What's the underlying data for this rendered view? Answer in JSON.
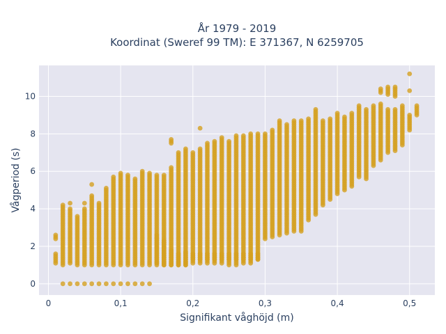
{
  "chart_data": {
    "type": "scatter",
    "title": [
      "År 1979 - 2019",
      "Koordinat (Sweref 99 TM): E 371367, N 6259705"
    ],
    "xlabel": "Signifikant våghöjd (m)",
    "ylabel": "Vågperiod (s)",
    "xlim": [
      -0.013,
      0.535
    ],
    "ylim": [
      -0.6,
      11.65
    ],
    "x_ticks": [
      0,
      0.1,
      0.2,
      0.3,
      0.4,
      0.5
    ],
    "x_tick_labels": [
      "0",
      "0,1",
      "0,2",
      "0,3",
      "0,4",
      "0,5"
    ],
    "y_ticks": [
      0,
      2,
      4,
      6,
      8,
      10
    ],
    "y_tick_labels": [
      "0",
      "2",
      "4",
      "6",
      "8",
      "10"
    ],
    "grid": true,
    "plot_background": "#e5e5f0",
    "marker_color": "#d4a020",
    "marker_opacity": 0.8,
    "legend": "none",
    "x_step": 0.01,
    "series": [
      {
        "columns": [
          {
            "x": 0.01,
            "ranges": [
              [
                1.1,
                1.6
              ],
              [
                2.4,
                2.6
              ]
            ]
          },
          {
            "x": 0.02,
            "ranges": [
              [
                1.0,
                4.2
              ]
            ],
            "points": [
              0
            ]
          },
          {
            "x": 0.03,
            "ranges": [
              [
                1.1,
                4.0
              ]
            ],
            "points": [
              0,
              4.3
            ]
          },
          {
            "x": 0.04,
            "ranges": [
              [
                1.0,
                3.6
              ]
            ],
            "points": [
              0
            ]
          },
          {
            "x": 0.05,
            "ranges": [
              [
                1.0,
                4.0
              ]
            ],
            "points": [
              0,
              4.3
            ]
          },
          {
            "x": 0.06,
            "ranges": [
              [
                1.0,
                4.7
              ]
            ],
            "points": [
              0,
              5.3
            ]
          },
          {
            "x": 0.07,
            "ranges": [
              [
                1.0,
                4.3
              ]
            ],
            "points": [
              0
            ]
          },
          {
            "x": 0.08,
            "ranges": [
              [
                1.0,
                5.1
              ]
            ],
            "points": [
              0
            ]
          },
          {
            "x": 0.09,
            "ranges": [
              [
                1.0,
                5.7
              ]
            ],
            "points": [
              0
            ]
          },
          {
            "x": 0.1,
            "ranges": [
              [
                1.0,
                5.9
              ]
            ],
            "points": [
              0
            ]
          },
          {
            "x": 0.11,
            "ranges": [
              [
                1.0,
                5.8
              ]
            ],
            "points": [
              0
            ]
          },
          {
            "x": 0.12,
            "ranges": [
              [
                1.0,
                5.6
              ]
            ],
            "points": [
              0
            ]
          },
          {
            "x": 0.13,
            "ranges": [
              [
                1.0,
                6.0
              ]
            ],
            "points": [
              0
            ]
          },
          {
            "x": 0.14,
            "ranges": [
              [
                1.0,
                5.9
              ]
            ],
            "points": [
              0
            ]
          },
          {
            "x": 0.15,
            "ranges": [
              [
                1.1,
                5.8
              ]
            ]
          },
          {
            "x": 0.16,
            "ranges": [
              [
                1.0,
                5.8
              ]
            ]
          },
          {
            "x": 0.17,
            "ranges": [
              [
                1.0,
                6.2
              ],
              [
                7.5,
                7.7
              ]
            ]
          },
          {
            "x": 0.18,
            "ranges": [
              [
                1.0,
                7.0
              ]
            ]
          },
          {
            "x": 0.19,
            "ranges": [
              [
                1.0,
                7.2
              ]
            ]
          },
          {
            "x": 0.2,
            "ranges": [
              [
                1.1,
                7.0
              ]
            ]
          },
          {
            "x": 0.21,
            "ranges": [
              [
                1.1,
                7.2
              ]
            ],
            "points": [
              8.3
            ]
          },
          {
            "x": 0.22,
            "ranges": [
              [
                1.1,
                7.5
              ]
            ]
          },
          {
            "x": 0.23,
            "ranges": [
              [
                1.1,
                7.6
              ]
            ]
          },
          {
            "x": 0.24,
            "ranges": [
              [
                1.1,
                7.8
              ]
            ]
          },
          {
            "x": 0.25,
            "ranges": [
              [
                1.0,
                7.6
              ]
            ]
          },
          {
            "x": 0.26,
            "ranges": [
              [
                1.0,
                7.9
              ]
            ]
          },
          {
            "x": 0.27,
            "ranges": [
              [
                1.1,
                7.9
              ]
            ]
          },
          {
            "x": 0.28,
            "ranges": [
              [
                1.1,
                8.0
              ]
            ]
          },
          {
            "x": 0.29,
            "ranges": [
              [
                1.3,
                8.0
              ]
            ]
          },
          {
            "x": 0.3,
            "ranges": [
              [
                2.4,
                8.0
              ]
            ]
          },
          {
            "x": 0.31,
            "ranges": [
              [
                2.5,
                8.2
              ]
            ]
          },
          {
            "x": 0.32,
            "ranges": [
              [
                2.6,
                8.7
              ]
            ]
          },
          {
            "x": 0.33,
            "ranges": [
              [
                2.7,
                8.5
              ]
            ]
          },
          {
            "x": 0.34,
            "ranges": [
              [
                2.8,
                8.7
              ]
            ]
          },
          {
            "x": 0.35,
            "ranges": [
              [
                2.8,
                8.7
              ]
            ]
          },
          {
            "x": 0.36,
            "ranges": [
              [
                3.4,
                8.8
              ]
            ]
          },
          {
            "x": 0.37,
            "ranges": [
              [
                3.7,
                9.3
              ]
            ]
          },
          {
            "x": 0.38,
            "ranges": [
              [
                4.2,
                8.7
              ]
            ]
          },
          {
            "x": 0.39,
            "ranges": [
              [
                4.5,
                8.8
              ]
            ]
          },
          {
            "x": 0.4,
            "ranges": [
              [
                4.8,
                9.1
              ]
            ]
          },
          {
            "x": 0.41,
            "ranges": [
              [
                5.0,
                8.9
              ]
            ]
          },
          {
            "x": 0.42,
            "ranges": [
              [
                5.2,
                9.1
              ]
            ]
          },
          {
            "x": 0.43,
            "ranges": [
              [
                5.7,
                9.5
              ]
            ]
          },
          {
            "x": 0.44,
            "ranges": [
              [
                5.6,
                9.3
              ]
            ]
          },
          {
            "x": 0.45,
            "ranges": [
              [
                6.3,
                9.5
              ]
            ]
          },
          {
            "x": 0.46,
            "ranges": [
              [
                6.6,
                9.6
              ],
              [
                10.2,
                10.4
              ]
            ]
          },
          {
            "x": 0.47,
            "ranges": [
              [
                7.0,
                9.3
              ],
              [
                10.1,
                10.5
              ]
            ]
          },
          {
            "x": 0.48,
            "ranges": [
              [
                7.1,
                9.3
              ],
              [
                10.0,
                10.5
              ]
            ]
          },
          {
            "x": 0.49,
            "ranges": [
              [
                7.4,
                9.5
              ]
            ]
          },
          {
            "x": 0.5,
            "ranges": [
              [
                8.2,
                9.0
              ]
            ],
            "points": [
              10.3,
              11.2
            ]
          },
          {
            "x": 0.51,
            "ranges": [
              [
                9.0,
                9.5
              ]
            ]
          }
        ],
        "low_band": {
          "x_range": [
            0.15,
            0.29
          ],
          "ranges_by_x": {
            "0.15": [
              [
                1.0,
                2.6
              ]
            ],
            "0.16": [
              [
                1.0,
                2.3
              ]
            ],
            "0.17": [
              [
                1.0,
                1.8
              ]
            ],
            "0.18": [
              [
                1.0,
                1.6
              ]
            ],
            "0.19": [
              [
                1.0,
                1.7
              ]
            ]
          }
        }
      }
    ]
  }
}
